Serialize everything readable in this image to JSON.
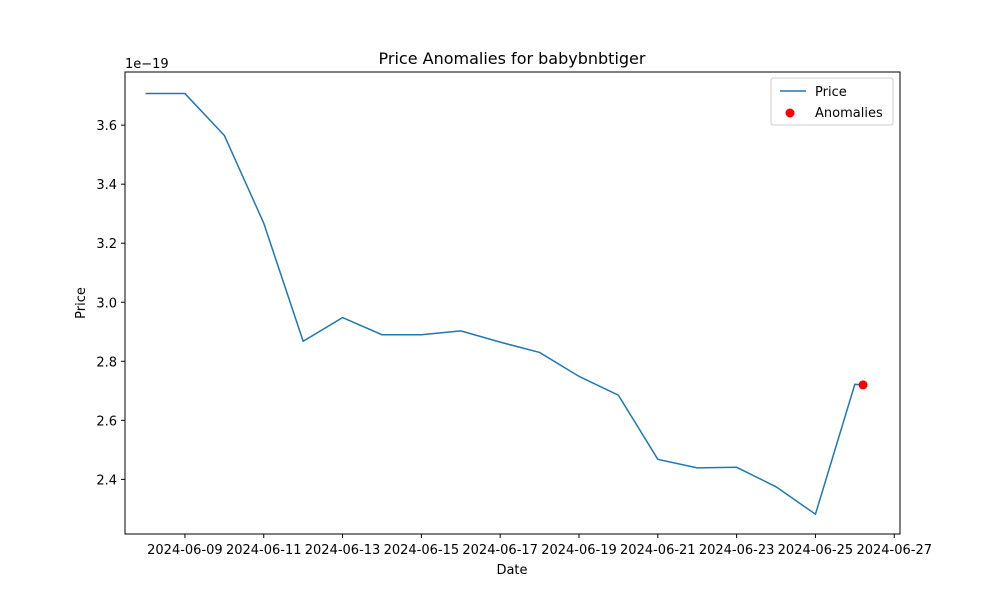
{
  "chart_data": {
    "type": "line",
    "title": "Price Anomalies for babybnbtiger",
    "xlabel": "Date",
    "ylabel": "Price",
    "y_offset_text": "1e−19",
    "x_tick_labels": [
      "2024-06-09",
      "2024-06-11",
      "2024-06-13",
      "2024-06-15",
      "2024-06-17",
      "2024-06-19",
      "2024-06-21",
      "2024-06-23",
      "2024-06-25",
      "2024-06-27"
    ],
    "y_tick_labels": [
      "2.4",
      "2.6",
      "2.8",
      "3.0",
      "3.2",
      "3.4",
      "3.6"
    ],
    "y_ticks": [
      2.4,
      2.6,
      2.8,
      3.0,
      3.2,
      3.4,
      3.6
    ],
    "xlim": [
      "2024-06-07T11:30",
      "2024-06-27T03:30"
    ],
    "ylim": [
      2.215,
      3.78
    ],
    "grid": false,
    "legend_position": "top-right",
    "series": [
      {
        "name": "Price",
        "color": "#1f77b4",
        "kind": "line",
        "points": [
          {
            "x": "2024-06-08",
            "y": 3.707
          },
          {
            "x": "2024-06-09",
            "y": 3.707
          },
          {
            "x": "2024-06-10",
            "y": 3.565
          },
          {
            "x": "2024-06-11",
            "y": 3.268
          },
          {
            "x": "2024-06-12",
            "y": 2.868
          },
          {
            "x": "2024-06-13",
            "y": 2.948
          },
          {
            "x": "2024-06-14",
            "y": 2.89
          },
          {
            "x": "2024-06-15",
            "y": 2.89
          },
          {
            "x": "2024-06-16",
            "y": 2.903
          },
          {
            "x": "2024-06-17",
            "y": 2.865
          },
          {
            "x": "2024-06-18",
            "y": 2.83
          },
          {
            "x": "2024-06-19",
            "y": 2.749
          },
          {
            "x": "2024-06-20",
            "y": 2.685
          },
          {
            "x": "2024-06-21",
            "y": 2.468
          },
          {
            "x": "2024-06-22",
            "y": 2.439
          },
          {
            "x": "2024-06-23",
            "y": 2.441
          },
          {
            "x": "2024-06-24",
            "y": 2.375
          },
          {
            "x": "2024-06-25",
            "y": 2.282
          },
          {
            "x": "2024-06-26",
            "y": 2.722
          },
          {
            "x": "2024-06-26T05:00",
            "y": 2.72
          }
        ]
      },
      {
        "name": "Anomalies",
        "color": "#ff0000",
        "kind": "scatter",
        "points": [
          {
            "x": "2024-06-26T05:00",
            "y": 2.72
          }
        ]
      }
    ]
  }
}
